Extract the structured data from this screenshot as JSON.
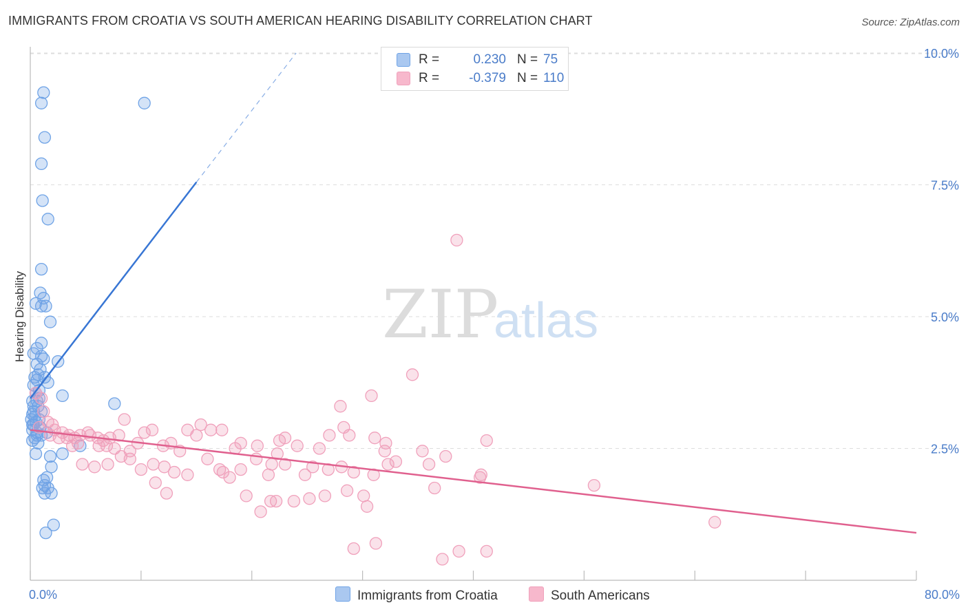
{
  "title": "IMMIGRANTS FROM CROATIA VS SOUTH AMERICAN HEARING DISABILITY CORRELATION CHART",
  "source": "Source: ZipAtlas.com",
  "watermark": {
    "zip": "ZIP",
    "atlas": "atlas"
  },
  "legend": {
    "rows": [
      {
        "r_label": "R =",
        "r_value": "0.230",
        "n_label": "N =",
        "n_value": "75",
        "color": "#aac8f0"
      },
      {
        "r_label": "R =",
        "r_value": "-0.379",
        "n_label": "N =",
        "n_value": "110",
        "color": "#f7b8cc"
      }
    ]
  },
  "bottom_legend": [
    {
      "label": "Immigrants from Croatia",
      "color": "#aac8f0"
    },
    {
      "label": "South Americans",
      "color": "#f7b8cc"
    }
  ],
  "chart_data": {
    "type": "scatter",
    "title": "IMMIGRANTS FROM CROATIA VS SOUTH AMERICAN HEARING DISABILITY CORRELATION CHART",
    "xlabel": "",
    "ylabel": "Hearing Disability",
    "xlim": [
      0,
      80
    ],
    "ylim": [
      0,
      10
    ],
    "x_tick_labels": [
      {
        "x": 0,
        "label": "0.0%"
      },
      {
        "x": 80,
        "label": "80.0%"
      }
    ],
    "y_tick_labels": [
      {
        "y": 2.5,
        "label": "2.5%"
      },
      {
        "y": 5.0,
        "label": "5.0%"
      },
      {
        "y": 7.5,
        "label": "7.5%"
      },
      {
        "y": 10.0,
        "label": "10.0%"
      }
    ],
    "grid": true,
    "series": [
      {
        "name": "Immigrants from Croatia",
        "color": "#6fa3e6",
        "line_color": "#3876d4",
        "trend": {
          "x1": 0.0,
          "y1": 3.45,
          "x2": 15.0,
          "y2": 7.55,
          "dash_x2": 24.0,
          "dash_y2": 10.0
        },
        "points": [
          [
            1.2,
            9.25
          ],
          [
            1.0,
            9.05
          ],
          [
            10.3,
            9.05
          ],
          [
            1.3,
            8.4
          ],
          [
            1.0,
            7.9
          ],
          [
            1.1,
            7.2
          ],
          [
            1.6,
            6.85
          ],
          [
            1.0,
            5.9
          ],
          [
            0.9,
            5.45
          ],
          [
            0.5,
            5.25
          ],
          [
            1.2,
            5.35
          ],
          [
            1.0,
            5.2
          ],
          [
            1.4,
            5.2
          ],
          [
            1.8,
            4.9
          ],
          [
            1.0,
            4.5
          ],
          [
            0.6,
            4.4
          ],
          [
            0.3,
            4.3
          ],
          [
            1.0,
            4.25
          ],
          [
            1.2,
            4.2
          ],
          [
            2.5,
            4.15
          ],
          [
            0.6,
            4.1
          ],
          [
            0.9,
            4.0
          ],
          [
            0.7,
            3.9
          ],
          [
            0.4,
            3.85
          ],
          [
            1.3,
            3.85
          ],
          [
            0.6,
            3.8
          ],
          [
            1.6,
            3.75
          ],
          [
            0.3,
            3.7
          ],
          [
            0.5,
            3.55
          ],
          [
            0.8,
            3.45
          ],
          [
            2.9,
            3.5
          ],
          [
            0.2,
            3.4
          ],
          [
            0.6,
            3.4
          ],
          [
            7.6,
            3.35
          ],
          [
            0.3,
            3.3
          ],
          [
            0.7,
            3.3
          ],
          [
            1.0,
            3.2
          ],
          [
            0.2,
            3.15
          ],
          [
            0.4,
            3.1
          ],
          [
            0.1,
            3.05
          ],
          [
            0.8,
            3.05
          ],
          [
            0.5,
            3.0
          ],
          [
            0.3,
            2.95
          ],
          [
            0.9,
            2.9
          ],
          [
            0.2,
            2.85
          ],
          [
            1.5,
            2.8
          ],
          [
            0.6,
            2.8
          ],
          [
            1.0,
            2.75
          ],
          [
            0.4,
            2.7
          ],
          [
            0.2,
            2.65
          ],
          [
            0.7,
            2.6
          ],
          [
            4.5,
            2.55
          ],
          [
            0.5,
            2.4
          ],
          [
            1.8,
            2.35
          ],
          [
            2.9,
            2.4
          ],
          [
            1.9,
            2.15
          ],
          [
            1.2,
            1.9
          ],
          [
            1.5,
            1.95
          ],
          [
            1.3,
            1.8
          ],
          [
            1.1,
            1.75
          ],
          [
            1.6,
            1.75
          ],
          [
            1.3,
            1.65
          ],
          [
            1.9,
            1.65
          ],
          [
            2.1,
            1.05
          ],
          [
            1.4,
            0.9
          ],
          [
            0.3,
            3.2
          ],
          [
            0.8,
            3.6
          ],
          [
            0.2,
            2.95
          ],
          [
            0.6,
            2.75
          ]
        ]
      },
      {
        "name": "South Americans",
        "color": "#f0a0bb",
        "line_color": "#e0608e",
        "trend": {
          "x1": 0.0,
          "y1": 2.85,
          "x2": 80.0,
          "y2": 0.9
        },
        "points": [
          [
            0.5,
            3.55
          ],
          [
            1.0,
            3.45
          ],
          [
            1.2,
            3.2
          ],
          [
            1.6,
            3.0
          ],
          [
            2.0,
            2.95
          ],
          [
            0.8,
            2.9
          ],
          [
            2.2,
            2.85
          ],
          [
            2.9,
            2.8
          ],
          [
            1.8,
            2.75
          ],
          [
            3.5,
            2.75
          ],
          [
            4.5,
            2.75
          ],
          [
            5.2,
            2.8
          ],
          [
            2.6,
            2.7
          ],
          [
            3.3,
            2.7
          ],
          [
            4.0,
            2.7
          ],
          [
            5.4,
            2.75
          ],
          [
            6.1,
            2.7
          ],
          [
            7.2,
            2.7
          ],
          [
            8.0,
            2.75
          ],
          [
            8.5,
            3.05
          ],
          [
            6.6,
            2.65
          ],
          [
            4.3,
            2.6
          ],
          [
            3.8,
            2.55
          ],
          [
            6.2,
            2.55
          ],
          [
            6.9,
            2.55
          ],
          [
            7.6,
            2.5
          ],
          [
            9.0,
            2.45
          ],
          [
            9.7,
            2.6
          ],
          [
            10.3,
            2.8
          ],
          [
            11.0,
            2.85
          ],
          [
            12.0,
            2.55
          ],
          [
            12.7,
            2.6
          ],
          [
            13.5,
            2.45
          ],
          [
            14.2,
            2.85
          ],
          [
            15.4,
            2.95
          ],
          [
            15.0,
            2.75
          ],
          [
            16.3,
            2.85
          ],
          [
            17.3,
            2.85
          ],
          [
            18.5,
            2.5
          ],
          [
            19.0,
            2.6
          ],
          [
            20.5,
            2.55
          ],
          [
            22.3,
            2.4
          ],
          [
            22.5,
            2.65
          ],
          [
            23.0,
            2.7
          ],
          [
            24.1,
            2.55
          ],
          [
            26.1,
            2.5
          ],
          [
            27.0,
            2.75
          ],
          [
            28.0,
            3.3
          ],
          [
            28.3,
            2.9
          ],
          [
            28.8,
            2.75
          ],
          [
            30.8,
            3.5
          ],
          [
            31.1,
            2.7
          ],
          [
            32.1,
            2.6
          ],
          [
            34.5,
            3.9
          ],
          [
            35.4,
            2.45
          ],
          [
            36.0,
            2.2
          ],
          [
            33.0,
            2.25
          ],
          [
            32.3,
            2.2
          ],
          [
            31.0,
            2.0
          ],
          [
            29.2,
            2.05
          ],
          [
            28.1,
            2.15
          ],
          [
            26.9,
            2.1
          ],
          [
            25.5,
            2.15
          ],
          [
            24.8,
            2.0
          ],
          [
            23.0,
            2.2
          ],
          [
            21.8,
            2.2
          ],
          [
            20.4,
            2.3
          ],
          [
            19.0,
            2.1
          ],
          [
            18.0,
            1.95
          ],
          [
            17.1,
            2.1
          ],
          [
            16.0,
            2.3
          ],
          [
            14.2,
            2.0
          ],
          [
            13.0,
            2.05
          ],
          [
            12.1,
            2.15
          ],
          [
            11.1,
            2.2
          ],
          [
            10.0,
            2.1
          ],
          [
            9.0,
            2.3
          ],
          [
            8.2,
            2.35
          ],
          [
            7.0,
            2.2
          ],
          [
            5.8,
            2.15
          ],
          [
            4.7,
            2.2
          ],
          [
            11.3,
            1.85
          ],
          [
            12.3,
            1.65
          ],
          [
            17.4,
            2.05
          ],
          [
            19.5,
            1.6
          ],
          [
            20.8,
            1.3
          ],
          [
            21.7,
            1.5
          ],
          [
            22.2,
            1.5
          ],
          [
            23.8,
            1.5
          ],
          [
            25.2,
            1.55
          ],
          [
            26.6,
            1.6
          ],
          [
            28.6,
            1.7
          ],
          [
            30.1,
            1.6
          ],
          [
            30.4,
            1.4
          ],
          [
            32.0,
            2.45
          ],
          [
            36.5,
            1.75
          ],
          [
            37.5,
            2.35
          ],
          [
            41.2,
            2.65
          ],
          [
            38.5,
            6.45
          ],
          [
            40.7,
            2.0
          ],
          [
            40.6,
            1.95
          ],
          [
            50.9,
            1.8
          ],
          [
            61.8,
            1.1
          ],
          [
            29.2,
            0.6
          ],
          [
            31.2,
            0.7
          ],
          [
            37.2,
            0.4
          ],
          [
            38.7,
            0.55
          ],
          [
            41.2,
            0.55
          ],
          [
            21.5,
            2.0
          ]
        ]
      }
    ]
  }
}
